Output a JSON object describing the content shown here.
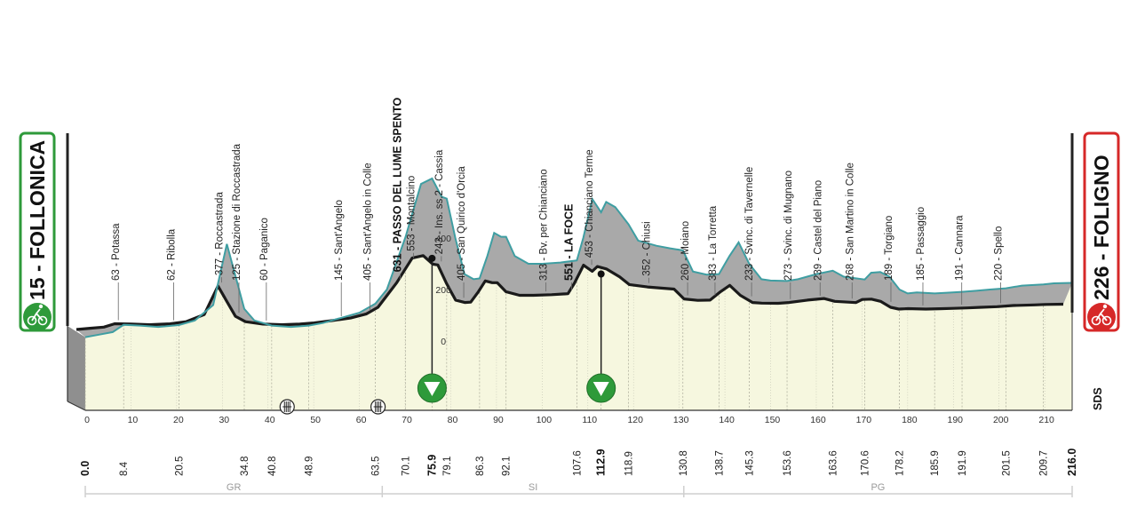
{
  "chart_data": {
    "type": "area",
    "x_range": [
      0,
      216
    ],
    "x_ticks": [
      0,
      10,
      20,
      30,
      40,
      50,
      60,
      70,
      80,
      90,
      100,
      110,
      120,
      130,
      140,
      150,
      160,
      170,
      180,
      190,
      200,
      210
    ],
    "y_ticks": [
      0,
      200,
      400
    ],
    "start": {
      "label": "15 - FOLLONICA",
      "color": "#2e9a3a",
      "icon": "cyclist-icon"
    },
    "finish": {
      "label": "226 - FOLIGNO",
      "color": "#d62828",
      "icon": "cyclist-icon"
    },
    "brand": "SDS",
    "profile": [
      [
        0,
        15
      ],
      [
        3,
        25
      ],
      [
        6,
        35
      ],
      [
        8.4,
        63
      ],
      [
        12,
        60
      ],
      [
        16,
        55
      ],
      [
        20.5,
        62
      ],
      [
        24,
        80
      ],
      [
        28,
        140
      ],
      [
        31,
        377
      ],
      [
        34.8,
        125
      ],
      [
        37,
        80
      ],
      [
        40.8,
        60
      ],
      [
        45,
        55
      ],
      [
        48.9,
        60
      ],
      [
        52,
        70
      ],
      [
        56,
        90
      ],
      [
        60,
        110
      ],
      [
        63.5,
        145
      ],
      [
        66,
        200
      ],
      [
        68,
        300
      ],
      [
        70.1,
        405
      ],
      [
        72,
        520
      ],
      [
        73.5,
        610
      ],
      [
        75.9,
        631
      ],
      [
        78,
        560
      ],
      [
        79.1,
        553
      ],
      [
        81,
        400
      ],
      [
        83,
        260
      ],
      [
        85,
        240
      ],
      [
        86.3,
        243
      ],
      [
        88,
        330
      ],
      [
        89.5,
        420
      ],
      [
        91,
        405
      ],
      [
        92.1,
        405
      ],
      [
        94,
        330
      ],
      [
        97,
        300
      ],
      [
        100,
        300
      ],
      [
        104,
        305
      ],
      [
        107.6,
        313
      ],
      [
        109,
        400
      ],
      [
        111,
        551
      ],
      [
        112.9,
        500
      ],
      [
        114,
        540
      ],
      [
        116,
        520
      ],
      [
        118.9,
        453
      ],
      [
        121,
        390
      ],
      [
        125,
        370
      ],
      [
        128,
        360
      ],
      [
        130.8,
        352
      ],
      [
        133,
        270
      ],
      [
        136,
        258
      ],
      [
        138.7,
        260
      ],
      [
        141,
        330
      ],
      [
        143,
        383
      ],
      [
        145.3,
        300
      ],
      [
        148,
        240
      ],
      [
        150,
        235
      ],
      [
        153.6,
        233
      ],
      [
        156,
        240
      ],
      [
        160,
        260
      ],
      [
        163.6,
        273
      ],
      [
        166,
        250
      ],
      [
        170.6,
        239
      ],
      [
        172,
        265
      ],
      [
        174,
        268
      ],
      [
        176,
        250
      ],
      [
        178.2,
        200
      ],
      [
        180,
        185
      ],
      [
        182,
        189
      ],
      [
        185.9,
        185
      ],
      [
        189,
        188
      ],
      [
        191.9,
        191
      ],
      [
        195,
        195
      ],
      [
        198,
        200
      ],
      [
        201.5,
        205
      ],
      [
        205,
        215
      ],
      [
        209.7,
        220
      ],
      [
        212,
        224
      ],
      [
        216,
        226
      ]
    ],
    "waypoints": [
      {
        "km": 8.4,
        "text": "63 - Potassa",
        "bold": false
      },
      {
        "km": 20.5,
        "text": "62 - Ribolla",
        "bold": false
      },
      {
        "km": 31,
        "text": "377 - Roccastrada",
        "bold": false
      },
      {
        "km": 34.8,
        "text": "125 - Stazione di Roccastrada",
        "bold": false
      },
      {
        "km": 40.8,
        "text": "60 - Paganico",
        "bold": false
      },
      {
        "km": 57.2,
        "text": "145 - Sant'Angelo",
        "bold": false
      },
      {
        "km": 63.5,
        "text": "405 - Sant'Angelo in Colle",
        "bold": false
      },
      {
        "km": 70.1,
        "text": "631 - PASSO DEL LUME SPENTO",
        "bold": true
      },
      {
        "km": 73,
        "text": "553 - Montalcino",
        "bold": false
      },
      {
        "km": 79.1,
        "text": "243 - Ins. ss.2 - Cassia",
        "bold": false
      },
      {
        "km": 84,
        "text": "405 - San Quirico d'Orcia",
        "bold": false
      },
      {
        "km": 102,
        "text": "313 - Bv. per Chianciano",
        "bold": false
      },
      {
        "km": 107.6,
        "text": "551 - LA FOCE",
        "bold": true
      },
      {
        "km": 112,
        "text": "453 - Chianciano Terme",
        "bold": false
      },
      {
        "km": 124.5,
        "text": "352 - Chiusi",
        "bold": false
      },
      {
        "km": 133,
        "text": "260 - Moiano",
        "bold": false
      },
      {
        "km": 139,
        "text": "383 - La Torretta",
        "bold": false
      },
      {
        "km": 147,
        "text": "233 - Svinc. di Tavernelle",
        "bold": false
      },
      {
        "km": 155.5,
        "text": "273 - Svinc. di Mugnano",
        "bold": false
      },
      {
        "km": 162,
        "text": "239 - Castel del Piano",
        "bold": false
      },
      {
        "km": 169,
        "text": "268 - San Martino in Colle",
        "bold": false
      },
      {
        "km": 177.5,
        "text": "189 - Torgiano",
        "bold": false
      },
      {
        "km": 184.5,
        "text": "185 - Passaggio",
        "bold": false
      },
      {
        "km": 193,
        "text": "191 - Cannara",
        "bold": false
      },
      {
        "km": 201.5,
        "text": "220 - Spello",
        "bold": false
      }
    ],
    "km_markers": [
      {
        "km": 0,
        "label": "0.0",
        "bold": true
      },
      {
        "km": 8.4,
        "label": "8.4",
        "bold": false
      },
      {
        "km": 20.5,
        "label": "20.5",
        "bold": false
      },
      {
        "km": 34.8,
        "label": "34.8",
        "bold": false
      },
      {
        "km": 40.8,
        "label": "40.8",
        "bold": false
      },
      {
        "km": 48.9,
        "label": "48.9",
        "bold": false
      },
      {
        "km": 63.5,
        "label": "63.5",
        "bold": false
      },
      {
        "km": 70.1,
        "label": "70.1",
        "bold": false
      },
      {
        "km": 75.9,
        "label": "75.9",
        "bold": true
      },
      {
        "km": 79.1,
        "label": "79.1",
        "bold": false
      },
      {
        "km": 86.3,
        "label": "86.3",
        "bold": false
      },
      {
        "km": 92.1,
        "label": "92.1",
        "bold": false
      },
      {
        "km": 107.6,
        "label": "107.6",
        "bold": false
      },
      {
        "km": 112.9,
        "label": "112.9",
        "bold": true
      },
      {
        "km": 118.9,
        "label": "118.9",
        "bold": false
      },
      {
        "km": 130.8,
        "label": "130.8",
        "bold": false
      },
      {
        "km": 138.7,
        "label": "138.7",
        "bold": false
      },
      {
        "km": 145.3,
        "label": "145.3",
        "bold": false
      },
      {
        "km": 153.6,
        "label": "153.6",
        "bold": false
      },
      {
        "km": 163.6,
        "label": "163.6",
        "bold": false
      },
      {
        "km": 170.6,
        "label": "170.6",
        "bold": false
      },
      {
        "km": 178.2,
        "label": "178.2",
        "bold": false
      },
      {
        "km": 185.9,
        "label": "185.9",
        "bold": false
      },
      {
        "km": 191.9,
        "label": "191.9",
        "bold": false
      },
      {
        "km": 201.5,
        "label": "201.5",
        "bold": false
      },
      {
        "km": 209.7,
        "label": "209.7",
        "bold": false
      },
      {
        "km": 216.0,
        "label": "216.0",
        "bold": true
      }
    ],
    "gpm": [
      {
        "km": 75.9,
        "type": "gpm-marker-icon"
      },
      {
        "km": 112.9,
        "type": "gpm-marker-icon"
      }
    ],
    "sprints": [
      {
        "km": 43.6,
        "type": "sprint-marker-icon"
      },
      {
        "km": 63.5,
        "type": "sprint-marker-icon"
      }
    ],
    "regions": [
      {
        "code": "GR",
        "from": 0,
        "to": 65
      },
      {
        "code": "SI",
        "from": 65,
        "to": 131
      },
      {
        "code": "PG",
        "from": 131,
        "to": 216
      }
    ]
  }
}
